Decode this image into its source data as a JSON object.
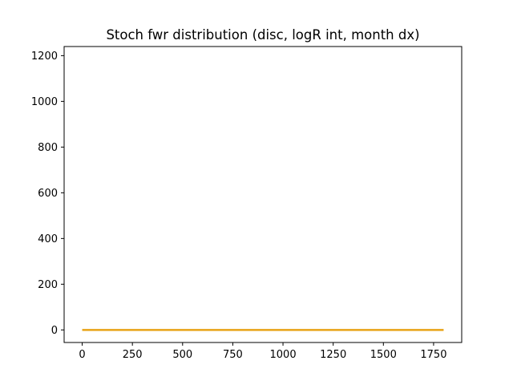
{
  "chart_data": {
    "type": "line",
    "title": "Stoch fwr distribution (disc, logR int, month dx)",
    "xlabel": "",
    "ylabel": "",
    "xlim": [
      -90,
      1890
    ],
    "ylim": [
      -55,
      1240
    ],
    "x_ticks": [
      0,
      250,
      500,
      750,
      1000,
      1250,
      1500,
      1750
    ],
    "y_ticks": [
      0,
      200,
      400,
      600,
      800,
      1000,
      1200
    ],
    "grid": false,
    "legend": "none",
    "series": [
      {
        "color": "#e8a317",
        "x": [
          0,
          1800
        ],
        "y": [
          0,
          0
        ]
      }
    ]
  }
}
